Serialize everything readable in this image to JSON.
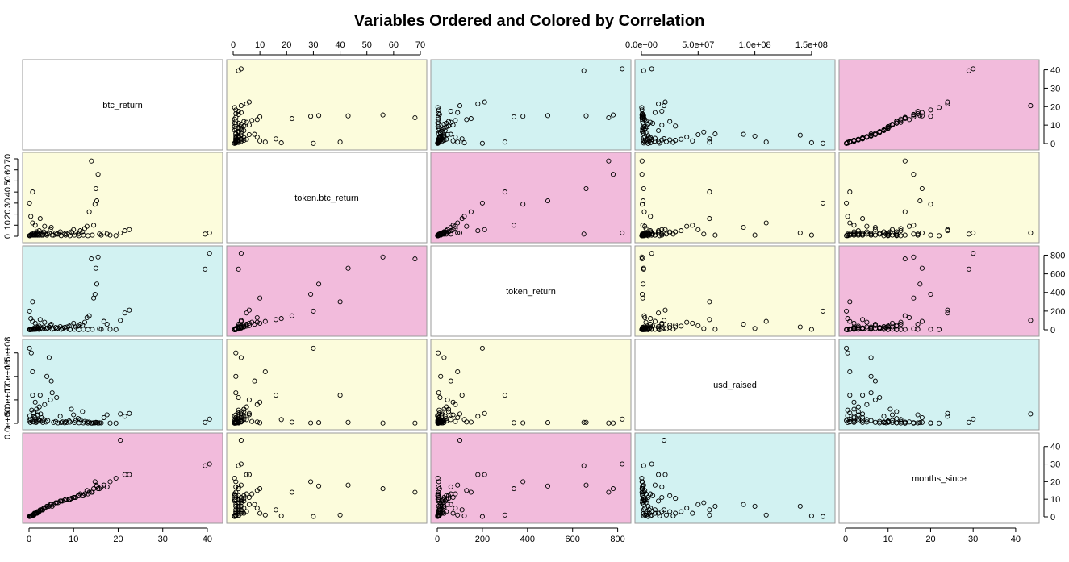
{
  "chart_data": {
    "type": "scatter",
    "title": "Variables Ordered and Colored by Correlation",
    "variables": [
      {
        "name": "btc_return",
        "range": [
          0,
          42
        ],
        "ticks": [
          0,
          10,
          20,
          30,
          40
        ],
        "tick_labels": [
          "0",
          "10",
          "20",
          "30",
          "40"
        ]
      },
      {
        "name": "token.btc_return",
        "range": [
          0,
          70
        ],
        "ticks": [
          0,
          10,
          20,
          30,
          40,
          50,
          60,
          70
        ],
        "tick_labels": [
          "0",
          "10",
          "20",
          "30",
          "40",
          "50",
          "60",
          "70"
        ]
      },
      {
        "name": "token_return",
        "range": [
          0,
          830
        ],
        "ticks": [
          0,
          200,
          400,
          600,
          800
        ],
        "tick_labels": [
          "0",
          "200",
          "400",
          "600",
          "800"
        ]
      },
      {
        "name": "usd_raised",
        "range": [
          0,
          165000000
        ],
        "ticks": [
          0,
          50000000,
          100000000,
          150000000
        ],
        "tick_labels": [
          "0.0e+00",
          "5.0e+07",
          "1.0e+08",
          "1.5e+08"
        ]
      },
      {
        "name": "months_since",
        "range": [
          0,
          44
        ],
        "ticks": [
          0,
          10,
          20,
          30,
          40
        ],
        "tick_labels": [
          "0",
          "10",
          "20",
          "30",
          "40"
        ]
      }
    ],
    "correlation_colors": {
      "high": "#f2bbdc",
      "medium": "#fcfcdc",
      "low": "#d2f2f2",
      "diagonal": "#ffffff"
    },
    "panel_strength": [
      [
        "diagonal",
        "medium",
        "low",
        "low",
        "high"
      ],
      [
        "medium",
        "diagonal",
        "high",
        "medium",
        "medium"
      ],
      [
        "low",
        "high",
        "diagonal",
        "medium",
        "high"
      ],
      [
        "low",
        "medium",
        "medium",
        "diagonal",
        "low"
      ],
      [
        "high",
        "medium",
        "high",
        "low",
        "diagonal"
      ]
    ],
    "axis_layout": {
      "top": [
        1,
        3
      ],
      "bottom": [
        0,
        2,
        4
      ],
      "left": [
        1,
        3
      ],
      "right": [
        0,
        2,
        4
      ]
    },
    "observations": [
      [
        40.5,
        3,
        820,
        9000000,
        30
      ],
      [
        39.5,
        2,
        650,
        2000000,
        29
      ],
      [
        22.5,
        6,
        210,
        21000000,
        24
      ],
      [
        21.5,
        5,
        180,
        15000000,
        24
      ],
      [
        20.5,
        3,
        100,
        20000000,
        43.5
      ],
      [
        17.5,
        2,
        60,
        18000000,
        17
      ],
      [
        16.8,
        3,
        90,
        12000000,
        18
      ],
      [
        15.5,
        56,
        780,
        500000,
        16
      ],
      [
        15,
        43,
        660,
        2000000,
        18
      ],
      [
        15.2,
        32,
        490,
        1500000,
        17.5
      ],
      [
        14.8,
        29,
        380,
        800000,
        20
      ],
      [
        14.5,
        10,
        340,
        1200000,
        16
      ],
      [
        14,
        68,
        760,
        600000,
        14
      ],
      [
        13.5,
        22,
        150,
        2500000,
        14
      ],
      [
        13,
        9,
        130,
        3000000,
        15
      ],
      [
        12.5,
        7,
        80,
        4000000,
        13
      ],
      [
        12,
        4,
        50,
        25000000,
        12
      ],
      [
        11.5,
        5,
        60,
        8000000,
        13
      ],
      [
        11,
        2,
        40,
        10000000,
        12
      ],
      [
        10.5,
        3,
        30,
        6000000,
        11
      ],
      [
        10,
        6,
        70,
        18000000,
        11
      ],
      [
        9.5,
        4,
        50,
        30000000,
        10.5
      ],
      [
        9,
        3,
        40,
        5000000,
        10
      ],
      [
        8.5,
        2,
        30,
        2000000,
        10
      ],
      [
        8,
        2,
        25,
        1000000,
        9.5
      ],
      [
        7.5,
        3,
        20,
        3000000,
        9
      ],
      [
        7,
        4,
        35,
        15000000,
        9
      ],
      [
        6.5,
        2,
        20,
        800000,
        8
      ],
      [
        6,
        3,
        25,
        4000000,
        8
      ],
      [
        5.5,
        1,
        15,
        2000000,
        7
      ],
      [
        5,
        8,
        60,
        90000000,
        7
      ],
      [
        4.8,
        6,
        45,
        50000000,
        7
      ],
      [
        4.5,
        3,
        30,
        140000000,
        6
      ],
      [
        4.2,
        2,
        20,
        6000000,
        6
      ],
      [
        4,
        1,
        15,
        100000000,
        6
      ],
      [
        3.8,
        2,
        10,
        3000000,
        5
      ],
      [
        3.5,
        9,
        80,
        40000000,
        5
      ],
      [
        3.3,
        4,
        30,
        8000000,
        5
      ],
      [
        3.1,
        1,
        10,
        2000000,
        4
      ],
      [
        3,
        2,
        15,
        7000000,
        4
      ],
      [
        2.8,
        1,
        8,
        12000000,
        4
      ],
      [
        2.6,
        3,
        20,
        20000000,
        4
      ],
      [
        2.5,
        16,
        110,
        60000000,
        4
      ],
      [
        2.3,
        5,
        40,
        35000000,
        3
      ],
      [
        2.2,
        1,
        5,
        5000000,
        3
      ],
      [
        2.1,
        2,
        12,
        9000000,
        3
      ],
      [
        2,
        3,
        25,
        25000000,
        3
      ],
      [
        1.9,
        1,
        8,
        18000000,
        3
      ],
      [
        1.8,
        2,
        15,
        4000000,
        2
      ],
      [
        1.7,
        4,
        30,
        30000000,
        2
      ],
      [
        1.6,
        1,
        6,
        2000000,
        2
      ],
      [
        1.5,
        2,
        10,
        7000000,
        2
      ],
      [
        1.4,
        10,
        70,
        45000000,
        2
      ],
      [
        1.3,
        1,
        5,
        12000000,
        2
      ],
      [
        1.2,
        3,
        20,
        15000000,
        2
      ],
      [
        1.1,
        1,
        4,
        3000000,
        1
      ],
      [
        1,
        2,
        10,
        22000000,
        1
      ],
      [
        0.9,
        1,
        5,
        9000000,
        1
      ],
      [
        0.8,
        40,
        300,
        60000000,
        1
      ],
      [
        0.8,
        12,
        90,
        110000000,
        1
      ],
      [
        0.7,
        1,
        3,
        4000000,
        1
      ],
      [
        0.6,
        2,
        8,
        28000000,
        0.5
      ],
      [
        0.5,
        1,
        4,
        150000000,
        0.5
      ],
      [
        0.4,
        18,
        120,
        8000000,
        0.5
      ],
      [
        0.3,
        1,
        2,
        2000000,
        0.5
      ],
      [
        0.2,
        0.5,
        1,
        16000000,
        0.5
      ],
      [
        0.1,
        30,
        200,
        160000000,
        0.2
      ],
      [
        0.1,
        0.5,
        2,
        6000000,
        0.2
      ],
      [
        5.2,
        1,
        6,
        65000000,
        6
      ],
      [
        6.2,
        2,
        12,
        55000000,
        8
      ],
      [
        7.2,
        0.5,
        4,
        1500000,
        9
      ],
      [
        8.2,
        1,
        8,
        3500000,
        10
      ],
      [
        9.2,
        0.5,
        3,
        2500000,
        10
      ],
      [
        10.2,
        1,
        6,
        1800000,
        11
      ],
      [
        11.2,
        0.5,
        2,
        1200000,
        12
      ],
      [
        12.2,
        1,
        5,
        900000,
        12
      ],
      [
        13.2,
        0.5,
        3,
        700000,
        13
      ],
      [
        14.2,
        1,
        4,
        600000,
        14
      ],
      [
        15.8,
        2,
        10,
        1100000,
        16
      ],
      [
        16.2,
        1,
        5,
        800000,
        17
      ],
      [
        18.2,
        1,
        6,
        500000,
        20
      ],
      [
        19.5,
        0.5,
        3,
        300000,
        22
      ]
    ]
  }
}
